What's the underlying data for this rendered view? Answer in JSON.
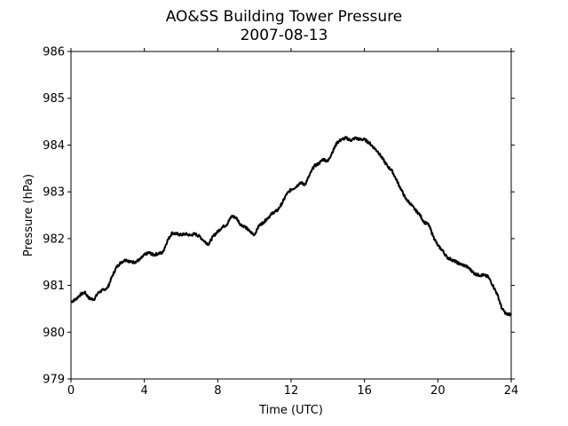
{
  "chart_data": {
    "type": "line",
    "title": "AO&SS Building Tower Pressure",
    "subtitle": "2007-08-13",
    "xlabel": "Time (UTC)",
    "ylabel": "Pressure (hPa)",
    "xlim": [
      0,
      24
    ],
    "ylim": [
      979,
      986
    ],
    "x_ticks": [
      0,
      4,
      8,
      12,
      16,
      20,
      24
    ],
    "y_ticks": [
      979,
      980,
      981,
      982,
      983,
      984,
      985,
      986
    ],
    "grid": false,
    "line_color": "#000000",
    "series": [
      {
        "x": [
          0,
          0.25,
          0.5,
          0.75,
          1.0,
          1.25,
          1.5,
          1.75,
          2.0,
          2.25,
          2.5,
          2.75,
          3.0,
          3.25,
          3.5,
          3.75,
          4.0,
          4.25,
          4.5,
          4.75,
          5.0,
          5.25,
          5.5,
          5.75,
          6.0,
          6.25,
          6.5,
          6.75,
          7.0,
          7.25,
          7.5,
          7.75,
          8.0,
          8.25,
          8.5,
          8.75,
          9.0,
          9.25,
          9.5,
          9.75,
          10.0,
          10.25,
          10.5,
          10.75,
          11.0,
          11.25,
          11.5,
          11.75,
          12.0,
          12.25,
          12.5,
          12.75,
          13.0,
          13.25,
          13.5,
          13.75,
          14.0,
          14.25,
          14.5,
          14.75,
          15.0,
          15.25,
          15.5,
          15.75,
          16.0,
          16.25,
          16.5,
          16.75,
          17.0,
          17.25,
          17.5,
          17.75,
          18.0,
          18.25,
          18.5,
          18.75,
          19.0,
          19.25,
          19.5,
          19.75,
          20.0,
          20.25,
          20.5,
          20.75,
          21.0,
          21.25,
          21.5,
          21.75,
          22.0,
          22.25,
          22.5,
          22.75,
          23.0,
          23.25,
          23.5,
          23.75,
          24.0
        ],
        "values": [
          980.65,
          980.7,
          980.8,
          980.85,
          980.72,
          980.7,
          980.85,
          980.9,
          980.95,
          981.2,
          981.4,
          981.5,
          981.55,
          981.5,
          981.5,
          981.55,
          981.65,
          981.7,
          981.65,
          981.68,
          981.7,
          981.95,
          982.12,
          982.1,
          982.08,
          982.1,
          982.07,
          982.1,
          982.05,
          981.95,
          981.88,
          982.05,
          982.15,
          982.25,
          982.3,
          982.48,
          982.45,
          982.3,
          982.25,
          982.15,
          982.08,
          982.28,
          982.35,
          982.45,
          982.55,
          982.6,
          982.75,
          982.95,
          983.05,
          983.1,
          983.2,
          983.15,
          983.35,
          983.55,
          983.6,
          983.7,
          983.65,
          983.85,
          984.05,
          984.12,
          984.15,
          984.1,
          984.15,
          984.12,
          984.12,
          984.05,
          983.95,
          983.85,
          983.7,
          983.55,
          983.45,
          983.25,
          983.05,
          982.85,
          982.75,
          982.62,
          982.52,
          982.35,
          982.3,
          982.05,
          981.85,
          981.75,
          981.6,
          981.55,
          981.5,
          981.45,
          981.42,
          981.35,
          981.25,
          981.22,
          981.22,
          981.18,
          981.0,
          980.8,
          980.5,
          980.38,
          980.38
        ]
      }
    ]
  }
}
